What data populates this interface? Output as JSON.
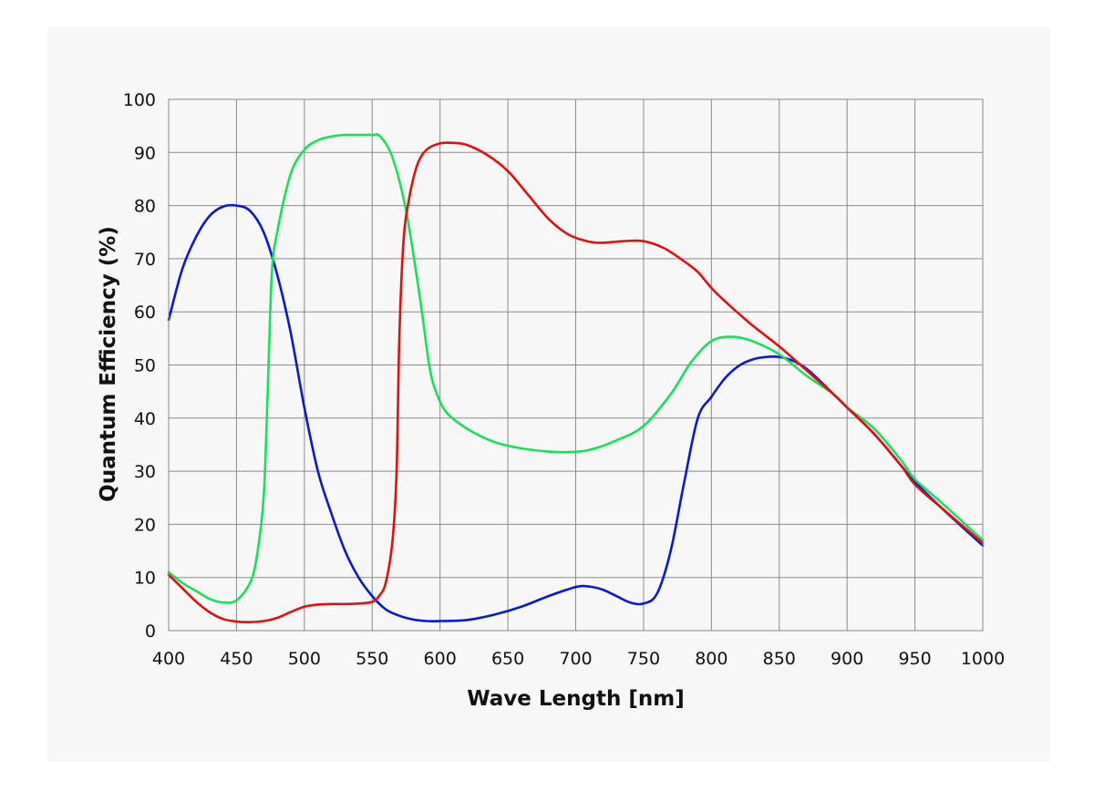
{
  "chart_data": {
    "type": "line",
    "title": "",
    "xlabel": "Wave Length [nm]",
    "ylabel": "Quantum Efficiency (%)",
    "xlim": [
      400,
      1000
    ],
    "ylim": [
      0,
      100
    ],
    "xticks": [
      "400",
      "450",
      "500",
      "550",
      "600",
      "650",
      "700",
      "750",
      "800",
      "850",
      "900",
      "950",
      "1000"
    ],
    "yticks": [
      "0",
      "10",
      "20",
      "30",
      "40",
      "50",
      "60",
      "70",
      "80",
      "90",
      "100"
    ],
    "grid": true,
    "legend": "none",
    "series": [
      {
        "color": "#0a18d6",
        "points": [
          [
            400,
            58.5
          ],
          [
            410,
            68
          ],
          [
            420,
            74
          ],
          [
            430,
            78
          ],
          [
            440,
            79.8
          ],
          [
            450,
            80
          ],
          [
            460,
            79
          ],
          [
            470,
            75
          ],
          [
            480,
            67
          ],
          [
            490,
            56
          ],
          [
            500,
            42
          ],
          [
            510,
            30
          ],
          [
            520,
            22
          ],
          [
            530,
            15
          ],
          [
            540,
            10
          ],
          [
            550,
            6.5
          ],
          [
            560,
            4
          ],
          [
            570,
            2.8
          ],
          [
            580,
            2.1
          ],
          [
            590,
            1.8
          ],
          [
            600,
            1.8
          ],
          [
            620,
            2
          ],
          [
            640,
            3
          ],
          [
            660,
            4.5
          ],
          [
            680,
            6.5
          ],
          [
            700,
            8.2
          ],
          [
            710,
            8.3
          ],
          [
            720,
            7.7
          ],
          [
            730,
            6.5
          ],
          [
            740,
            5.3
          ],
          [
            750,
            5.1
          ],
          [
            760,
            7
          ],
          [
            770,
            15
          ],
          [
            780,
            28
          ],
          [
            790,
            40
          ],
          [
            800,
            44
          ],
          [
            810,
            47.5
          ],
          [
            820,
            49.8
          ],
          [
            830,
            51
          ],
          [
            840,
            51.5
          ],
          [
            850,
            51.5
          ],
          [
            860,
            50.8
          ],
          [
            870,
            49.3
          ],
          [
            880,
            47
          ],
          [
            890,
            44.5
          ],
          [
            900,
            42
          ],
          [
            920,
            37
          ],
          [
            940,
            31
          ],
          [
            950,
            28
          ],
          [
            970,
            23
          ],
          [
            1000,
            16
          ]
        ]
      },
      {
        "color": "#19e05a",
        "points": [
          [
            400,
            11
          ],
          [
            410,
            9
          ],
          [
            420,
            7.5
          ],
          [
            430,
            6
          ],
          [
            440,
            5.3
          ],
          [
            450,
            5.7
          ],
          [
            460,
            9
          ],
          [
            465,
            14
          ],
          [
            470,
            25
          ],
          [
            473,
            45
          ],
          [
            476,
            67
          ],
          [
            480,
            75
          ],
          [
            490,
            86
          ],
          [
            500,
            90.5
          ],
          [
            510,
            92.3
          ],
          [
            520,
            93
          ],
          [
            530,
            93.3
          ],
          [
            540,
            93.3
          ],
          [
            550,
            93.3
          ],
          [
            556,
            93
          ],
          [
            565,
            89
          ],
          [
            575,
            79
          ],
          [
            585,
            63
          ],
          [
            592,
            50
          ],
          [
            597,
            45
          ],
          [
            605,
            41
          ],
          [
            620,
            38
          ],
          [
            640,
            35.5
          ],
          [
            660,
            34.3
          ],
          [
            680,
            33.7
          ],
          [
            695,
            33.6
          ],
          [
            710,
            34
          ],
          [
            730,
            35.8
          ],
          [
            750,
            38.5
          ],
          [
            770,
            44.5
          ],
          [
            785,
            50.5
          ],
          [
            800,
            54.5
          ],
          [
            815,
            55.3
          ],
          [
            830,
            54.5
          ],
          [
            850,
            52
          ],
          [
            870,
            48
          ],
          [
            890,
            44.5
          ],
          [
            900,
            42
          ],
          [
            920,
            38
          ],
          [
            940,
            32
          ],
          [
            950,
            28.5
          ],
          [
            970,
            24
          ],
          [
            1000,
            17
          ]
        ]
      },
      {
        "color": "#e01010",
        "points": [
          [
            400,
            10.5
          ],
          [
            410,
            8
          ],
          [
            420,
            5.5
          ],
          [
            430,
            3.5
          ],
          [
            440,
            2.2
          ],
          [
            450,
            1.7
          ],
          [
            460,
            1.6
          ],
          [
            470,
            1.8
          ],
          [
            480,
            2.4
          ],
          [
            490,
            3.5
          ],
          [
            500,
            4.5
          ],
          [
            510,
            4.9
          ],
          [
            520,
            5
          ],
          [
            530,
            5
          ],
          [
            540,
            5.1
          ],
          [
            550,
            5.4
          ],
          [
            555,
            6.5
          ],
          [
            560,
            9
          ],
          [
            565,
            17
          ],
          [
            568,
            30
          ],
          [
            570,
            55
          ],
          [
            573,
            73
          ],
          [
            577,
            81
          ],
          [
            583,
            87.5
          ],
          [
            590,
            90.5
          ],
          [
            600,
            91.7
          ],
          [
            610,
            91.8
          ],
          [
            620,
            91.4
          ],
          [
            635,
            89.5
          ],
          [
            650,
            86.5
          ],
          [
            665,
            82
          ],
          [
            680,
            77.5
          ],
          [
            695,
            74.5
          ],
          [
            710,
            73.2
          ],
          [
            720,
            73
          ],
          [
            735,
            73.3
          ],
          [
            750,
            73.3
          ],
          [
            765,
            72
          ],
          [
            780,
            69.5
          ],
          [
            790,
            67.5
          ],
          [
            800,
            64.5
          ],
          [
            810,
            62
          ],
          [
            830,
            57.5
          ],
          [
            850,
            53.5
          ],
          [
            870,
            49
          ],
          [
            890,
            44.5
          ],
          [
            900,
            42
          ],
          [
            920,
            37
          ],
          [
            940,
            31
          ],
          [
            950,
            27.5
          ],
          [
            970,
            23
          ],
          [
            1000,
            16.5
          ]
        ]
      }
    ]
  }
}
